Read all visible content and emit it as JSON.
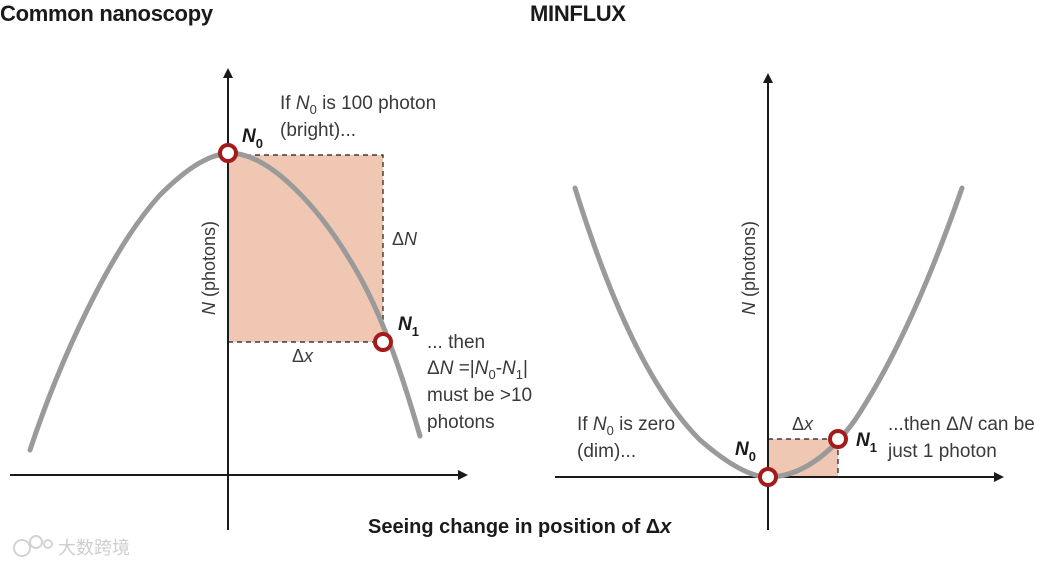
{
  "titles": {
    "left": "Common nanoscopy",
    "right": "MINFLUX"
  },
  "left_panel": {
    "y_axis_label_italic": "N",
    "y_axis_label_rest": " (photons)",
    "note_top_line1_a": "If ",
    "note_top_line1_var": "N",
    "note_top_line1_sub": "0",
    "note_top_line1_b": " is 100 photon",
    "note_top_line2": "(bright)...",
    "point0_label": "N",
    "point0_sub": "0",
    "point1_label": "N",
    "point1_sub": "1",
    "delta_n_label_sym": "Δ",
    "delta_n_label_var": "N",
    "delta_x_label_sym": "Δ",
    "delta_x_label_var": "x",
    "note_bottom_line1": "... then",
    "note_bottom_line2_a": "Δ",
    "note_bottom_line2_var": "N",
    "note_bottom_line2_b": " =|",
    "note_bottom_line2_n0": "N",
    "note_bottom_line2_n0_sub": "0",
    "note_bottom_line2_dash": "-",
    "note_bottom_line2_n1": "N",
    "note_bottom_line2_n1_sub": "1",
    "note_bottom_line2_end": "|",
    "note_bottom_line3": "must be >10",
    "note_bottom_line4": "photons"
  },
  "right_panel": {
    "y_axis_label_italic": "N",
    "y_axis_label_rest": " (photons)",
    "note_left_line1_a": "If ",
    "note_left_line1_var": "N",
    "note_left_line1_sub": "0",
    "note_left_line1_b": " is zero",
    "note_left_line2": "(dim)...",
    "point0_label": "N",
    "point0_sub": "0",
    "point1_label": "N",
    "point1_sub": "1",
    "delta_x_label_sym": "Δ",
    "delta_x_label_var": "x",
    "note_right_line1_a": "...then ",
    "note_right_line1_sym": "Δ",
    "note_right_line1_var": "N",
    "note_right_line1_b": " can be",
    "note_right_line2": "just 1 photon"
  },
  "caption": {
    "text": "Seeing change in position of ",
    "sym": "Δ",
    "var": "x"
  },
  "watermark": {
    "text": "大数跨境"
  },
  "colors": {
    "curve": "#9a9a9a",
    "axis": "#1a1a1a",
    "fill": "#efc7b3",
    "point": "#a31c1c",
    "dashes": "#1a1a1a"
  }
}
